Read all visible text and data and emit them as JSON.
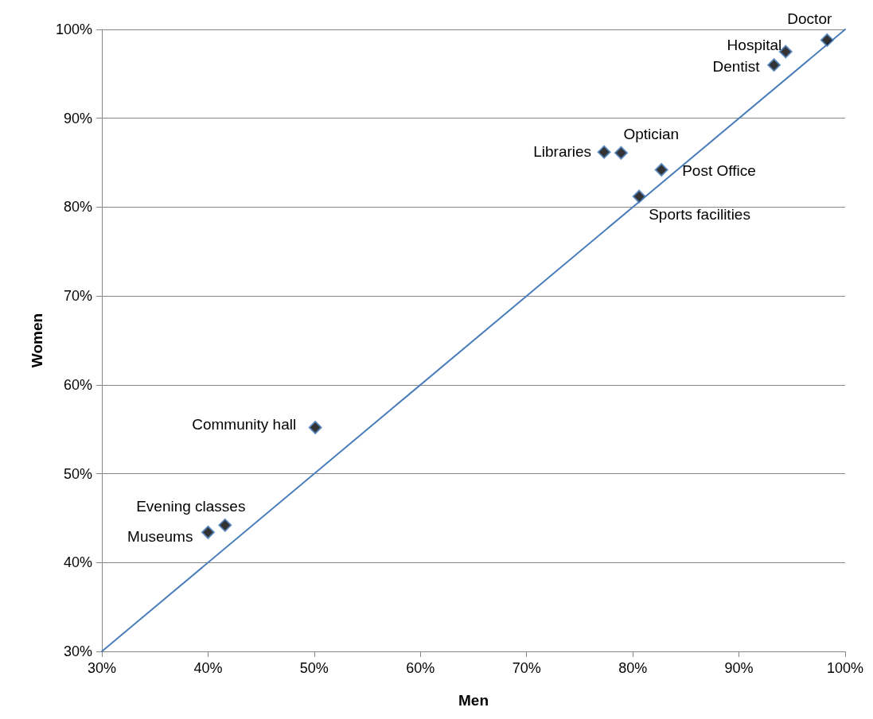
{
  "chart_data": {
    "type": "scatter",
    "xlabel": "Men",
    "ylabel": "Women",
    "x": [
      40.0,
      41.6,
      50.1,
      77.3,
      78.9,
      80.6,
      82.7,
      93.3,
      94.4,
      98.3
    ],
    "series": [
      {
        "color": "#000000",
        "values": [
          43.4,
          44.2,
          55.2,
          86.2,
          86.1,
          81.2,
          84.2,
          96.0,
          97.5,
          98.8
        ]
      },
      {
        "type": "line",
        "x": [
          30,
          100
        ],
        "values": [
          30,
          100
        ],
        "color": "#4a7ebb",
        "marker": "none",
        "line_style": "solid"
      }
    ],
    "marker": "diamond",
    "grid": "y",
    "xlim": [
      30,
      100
    ],
    "xticks": [
      {
        "value": 30,
        "label": "30%"
      },
      {
        "value": 40,
        "label": "40%"
      },
      {
        "value": 50,
        "label": "50%"
      },
      {
        "value": 60,
        "label": "60%"
      },
      {
        "value": 70,
        "label": "70%"
      },
      {
        "value": 80,
        "label": "80%"
      },
      {
        "value": 90,
        "label": "90%"
      },
      {
        "value": 100,
        "label": "100%"
      }
    ],
    "ylim": [
      30,
      100
    ],
    "yticks": [
      {
        "value": 30,
        "label": "30%"
      },
      {
        "value": 40,
        "label": "40%"
      },
      {
        "value": 50,
        "label": "50%"
      },
      {
        "value": 60,
        "label": "60%"
      },
      {
        "value": 70,
        "label": "70%"
      },
      {
        "value": 80,
        "label": "80%"
      },
      {
        "value": 90,
        "label": "90%"
      },
      {
        "value": 100,
        "label": "100%"
      }
    ],
    "annotations": [
      {
        "text": "Museums",
        "x": 40.0,
        "y": 43.4
      },
      {
        "text": "Evening classes",
        "x": 41.6,
        "y": 44.2
      },
      {
        "text": "Community hall",
        "x": 50.1,
        "y": 55.2
      },
      {
        "text": "Libraries",
        "x": 77.3,
        "y": 86.2
      },
      {
        "text": "Optician",
        "x": 78.9,
        "y": 86.1
      },
      {
        "text": "Sports facilities",
        "x": 80.6,
        "y": 81.2
      },
      {
        "text": "Post Office",
        "x": 82.7,
        "y": 84.2
      },
      {
        "text": "Dentist",
        "x": 93.3,
        "y": 96.0
      },
      {
        "text": "Hospital",
        "x": 94.4,
        "y": 97.5
      },
      {
        "text": "Doctor",
        "x": 98.3,
        "y": 98.8
      }
    ]
  }
}
